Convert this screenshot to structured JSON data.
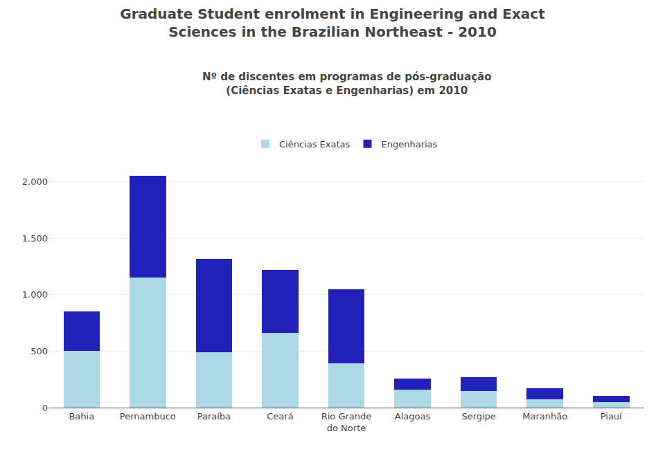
{
  "chart_data": {
    "type": "bar",
    "stacked": true,
    "title": "Graduate Student enrolment in Engineering and Exact\nSciences in the Brazilian Northeast - 2010",
    "subtitle": "Nº de discentes em programas de pós-graduação\n(Ciências Exatas e Engenharias) em 2010",
    "categories": [
      "Bahia",
      "Pernambuco",
      "Paraíba",
      "Ceará",
      "Rio Grande\ndo Norte",
      "Alagoas",
      "Sergipe",
      "Maranhão",
      "Piauí"
    ],
    "series": [
      {
        "name": "Ciências Exatas",
        "color": "#ADD8E6",
        "values": [
          500,
          1150,
          490,
          660,
          390,
          160,
          145,
          75,
          48
        ]
      },
      {
        "name": "Engenharias",
        "color": "#2222BB",
        "values": [
          350,
          900,
          830,
          560,
          660,
          95,
          125,
          95,
          55
        ]
      }
    ],
    "ylim": [
      0,
      2200
    ],
    "yticks": [
      0,
      500,
      {
        "value": 1000,
        "label": "1.000"
      },
      {
        "value": 1500,
        "label": "1.500"
      },
      {
        "value": 2000,
        "label": "2.000"
      }
    ],
    "grid": true,
    "legend": "upper center"
  }
}
